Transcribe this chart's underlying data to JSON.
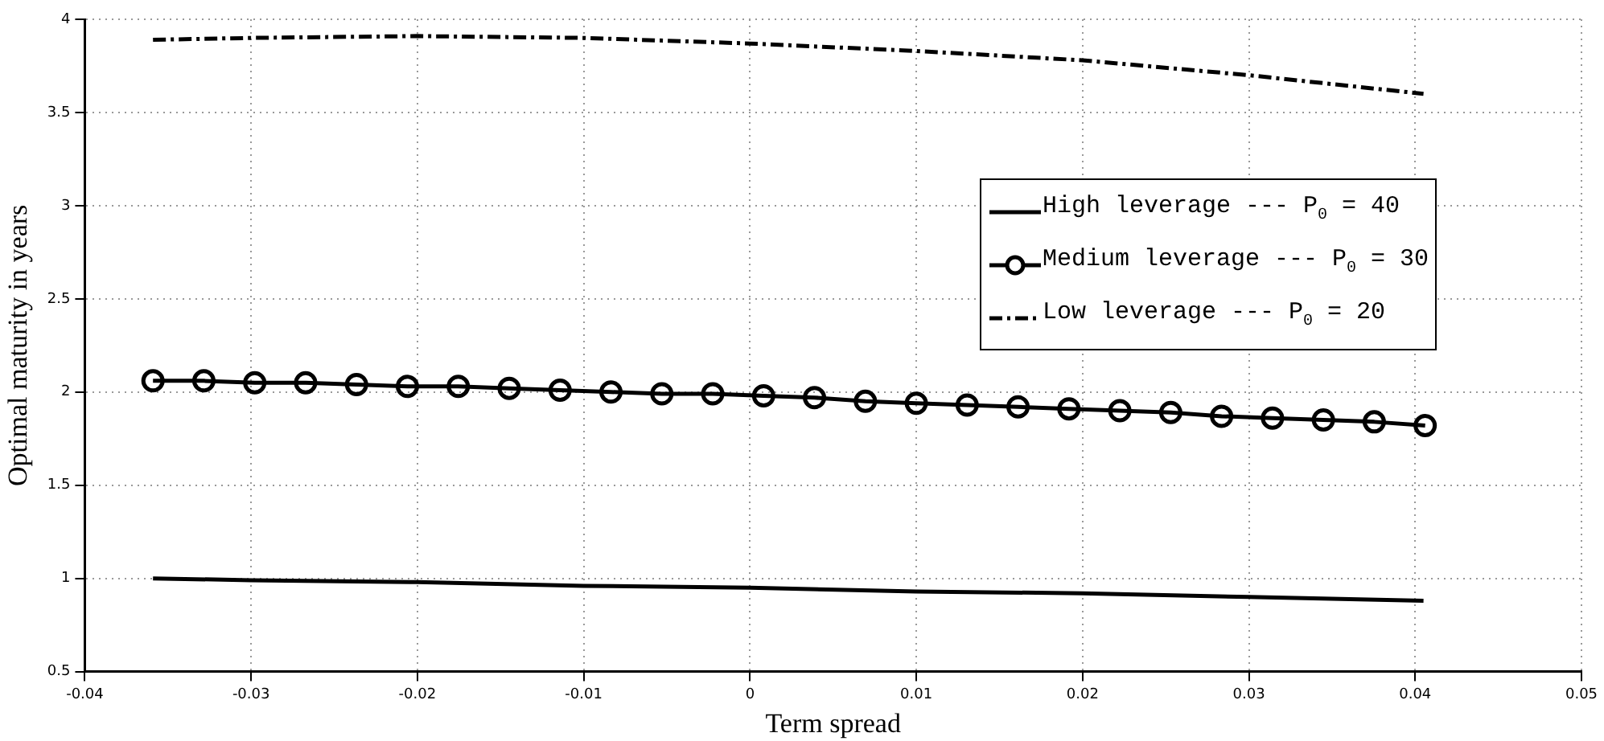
{
  "chart_data": {
    "type": "line",
    "xlabel": "Term spread",
    "ylabel": "Optimal maturity in years",
    "xlim": [
      -0.04,
      0.05
    ],
    "xticks": [
      -0.04,
      -0.03,
      -0.02,
      -0.01,
      0,
      0.01,
      0.02,
      0.03,
      0.04,
      0.05
    ],
    "ylim": [
      0.5,
      4
    ],
    "yticks": [
      0.5,
      1,
      1.5,
      2,
      2.5,
      3,
      3.5,
      4
    ],
    "grid": true,
    "legend": "right",
    "series": [
      {
        "name": "High leverage --- P$_{0}$ = 40",
        "color": "#000000",
        "marker": "none",
        "line_style": "solid",
        "x": [
          -0.0359,
          -0.03,
          -0.02,
          -0.01,
          0,
          0.01,
          0.02,
          0.03,
          0.0405
        ],
        "values": [
          1.0,
          0.99,
          0.98,
          0.96,
          0.95,
          0.93,
          0.92,
          0.9,
          0.88
        ]
      },
      {
        "name": "Medium leverage --- P$_{0}$ = 30",
        "color": "#000000",
        "marker": "circle",
        "line_style": "solid",
        "x": [
          -0.0359,
          -0.03284,
          -0.02978,
          -0.02672,
          -0.02366,
          -0.0206,
          -0.01754,
          -0.01448,
          -0.01142,
          -0.00836,
          -0.0053,
          -0.00224,
          0.00082,
          0.00388,
          0.00694,
          0.01,
          0.01306,
          0.01612,
          0.01918,
          0.02224,
          0.0253,
          0.02836,
          0.03142,
          0.03448,
          0.03754,
          0.0406
        ],
        "values": [
          2.06,
          2.06,
          2.05,
          2.05,
          2.04,
          2.03,
          2.03,
          2.02,
          2.01,
          2.0,
          1.99,
          1.99,
          1.98,
          1.97,
          1.95,
          1.94,
          1.93,
          1.92,
          1.91,
          1.9,
          1.89,
          1.87,
          1.86,
          1.85,
          1.84,
          1.82
        ]
      },
      {
        "name": "Low leverage --- P$_{0}$ = 20",
        "color": "#000000",
        "marker": "none",
        "line_style": "dashdot",
        "x": [
          -0.0359,
          -0.03,
          -0.02,
          -0.01,
          0,
          0.01,
          0.02,
          0.03,
          0.0405
        ],
        "values": [
          3.89,
          3.9,
          3.91,
          3.9,
          3.87,
          3.83,
          3.78,
          3.7,
          3.6
        ]
      }
    ]
  }
}
